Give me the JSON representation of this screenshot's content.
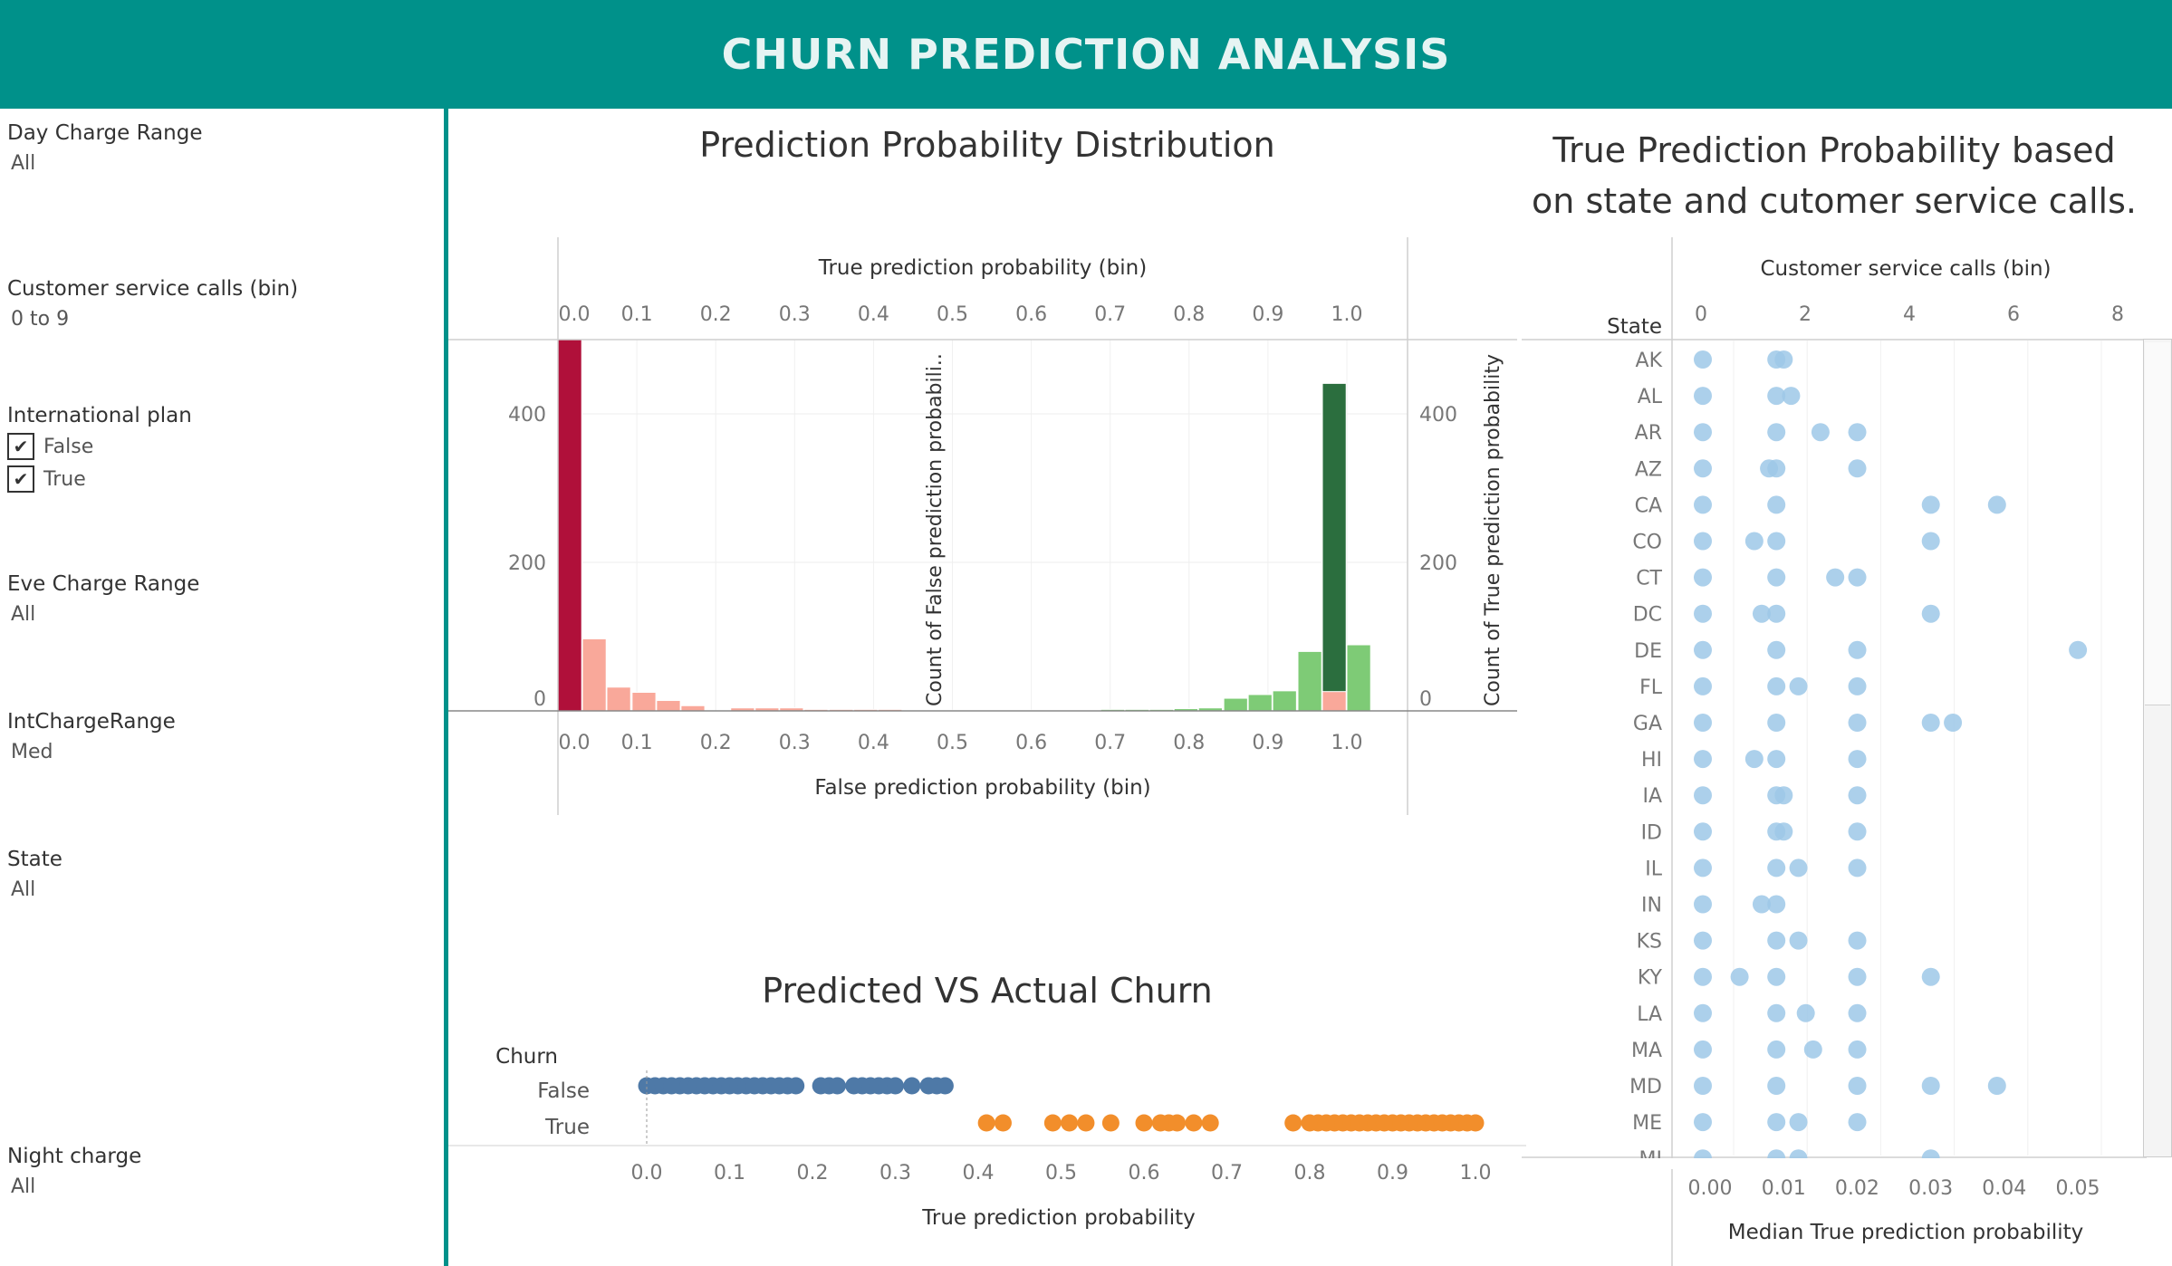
{
  "header": {
    "title": "CHURN PREDICTION ANALYSIS"
  },
  "filters": {
    "day_charge": {
      "label": "Day Charge Range",
      "value": "All"
    },
    "service_calls": {
      "label": "Customer service calls (bin)",
      "value": "0 to 9"
    },
    "intl_plan": {
      "label": "International plan",
      "options": [
        {
          "label": "False",
          "checked": true
        },
        {
          "label": "True",
          "checked": true
        }
      ]
    },
    "eve_charge": {
      "label": "Eve Charge Range",
      "value": "All"
    },
    "int_charge": {
      "label": "IntChargeRange",
      "value": "Med"
    },
    "state": {
      "label": "State",
      "value": "All"
    },
    "night_charge": {
      "label": "Night charge",
      "value": "All"
    }
  },
  "dist_chart": {
    "title": "Prediction Probability Distribution",
    "top_axis_label": "True prediction probability (bin)",
    "bottom_axis_label": "False prediction probability (bin)",
    "left_axis_label": "Count of False prediction probabili..",
    "right_axis_label": "Count of True prediction probability",
    "x_ticks": [
      "0.0",
      "0.1",
      "0.2",
      "0.3",
      "0.4",
      "0.5",
      "0.6",
      "0.7",
      "0.8",
      "0.9",
      "1.0"
    ],
    "y_ticks": [
      "0",
      "200",
      "400"
    ]
  },
  "churn_chart": {
    "title": "Predicted VS Actual Churn",
    "legend_title": "Churn",
    "rows": [
      "False",
      "True"
    ],
    "x_ticks": [
      "0.0",
      "0.1",
      "0.2",
      "0.3",
      "0.4",
      "0.5",
      "0.6",
      "0.7",
      "0.8",
      "0.9",
      "1.0"
    ],
    "x_label": "True prediction probability"
  },
  "state_chart": {
    "title_line1": "True Prediction Probability based",
    "title_line2": "on state and cutomer service calls.",
    "top_axis_label": "Customer service calls (bin)",
    "row_header": "State",
    "top_ticks": [
      "0",
      "2",
      "4",
      "6",
      "8"
    ],
    "bottom_ticks": [
      "0.00",
      "0.01",
      "0.02",
      "0.03",
      "0.04",
      "0.05"
    ],
    "bottom_label": "Median True prediction probability",
    "states": [
      "AK",
      "AL",
      "AR",
      "AZ",
      "CA",
      "CO",
      "CT",
      "DC",
      "DE",
      "FL",
      "GA",
      "HI",
      "IA",
      "ID",
      "IL",
      "IN",
      "KS",
      "KY",
      "LA",
      "MA",
      "MD",
      "ME",
      "MI"
    ]
  },
  "chart_data": [
    {
      "type": "bar",
      "x_bin_width": 0.03125,
      "ylim": [
        0,
        500
      ],
      "series": [
        {
          "name": "False prediction probability",
          "color_dark": "#b0103a",
          "color_light": "#f9a89a",
          "bins": [
            [
              0.0,
              500
            ],
            [
              0.031,
              97
            ],
            [
              0.062,
              32
            ],
            [
              0.094,
              25
            ],
            [
              0.125,
              14
            ],
            [
              0.156,
              7
            ],
            [
              0.219,
              4
            ],
            [
              0.25,
              4
            ],
            [
              0.281,
              4
            ],
            [
              0.312,
              2
            ],
            [
              0.344,
              2
            ],
            [
              0.375,
              2
            ],
            [
              0.406,
              2
            ],
            [
              0.5,
              1
            ],
            [
              0.531,
              1
            ],
            [
              0.562,
              1
            ],
            [
              0.594,
              1
            ],
            [
              0.625,
              1
            ],
            [
              0.656,
              1
            ],
            [
              0.688,
              1
            ],
            [
              0.719,
              1
            ],
            [
              0.75,
              1
            ],
            [
              0.781,
              1
            ],
            [
              0.812,
              3
            ],
            [
              0.844,
              4
            ],
            [
              0.875,
              5
            ],
            [
              0.906,
              7
            ],
            [
              0.938,
              10
            ],
            [
              0.969,
              26
            ]
          ]
        },
        {
          "name": "True prediction probability",
          "color_dark": "#2b6e3e",
          "color_light": "#7ecb76",
          "bins": [
            [
              0.688,
              2
            ],
            [
              0.719,
              2
            ],
            [
              0.75,
              2
            ],
            [
              0.781,
              3
            ],
            [
              0.812,
              4
            ],
            [
              0.844,
              17
            ],
            [
              0.875,
              22
            ],
            [
              0.906,
              27
            ],
            [
              0.938,
              80
            ],
            [
              0.969,
              441
            ],
            [
              1.0,
              89
            ]
          ]
        }
      ]
    },
    {
      "type": "scatter",
      "xlim": [
        0,
        1
      ],
      "series": [
        {
          "name": "False",
          "color": "#4e79a7",
          "x": [
            0.0,
            0.01,
            0.02,
            0.03,
            0.04,
            0.05,
            0.06,
            0.07,
            0.08,
            0.09,
            0.1,
            0.11,
            0.12,
            0.13,
            0.14,
            0.15,
            0.16,
            0.17,
            0.18,
            0.21,
            0.22,
            0.23,
            0.25,
            0.26,
            0.27,
            0.28,
            0.29,
            0.3,
            0.32,
            0.34,
            0.35,
            0.36
          ]
        },
        {
          "name": "True",
          "color": "#f28e2b",
          "x": [
            0.41,
            0.43,
            0.49,
            0.51,
            0.53,
            0.56,
            0.6,
            0.62,
            0.63,
            0.64,
            0.66,
            0.68,
            0.78,
            0.8,
            0.81,
            0.82,
            0.83,
            0.84,
            0.85,
            0.86,
            0.87,
            0.88,
            0.89,
            0.9,
            0.91,
            0.92,
            0.93,
            0.94,
            0.95,
            0.96,
            0.97,
            0.98,
            0.99,
            1.0
          ]
        }
      ]
    },
    {
      "type": "scatter",
      "x_label": "Median True prediction probability",
      "xlim": [
        0,
        0.055
      ],
      "color": "#9dc8e8",
      "points": {
        "AK": [
          0.0,
          0.01,
          0.011
        ],
        "AL": [
          0.0,
          0.01,
          0.012
        ],
        "AR": [
          0.0,
          0.01,
          0.016,
          0.021
        ],
        "AZ": [
          0.0,
          0.009,
          0.01,
          0.021
        ],
        "CA": [
          0.0,
          0.01,
          0.031,
          0.04
        ],
        "CO": [
          0.0,
          0.007,
          0.01,
          0.031
        ],
        "CT": [
          0.0,
          0.01,
          0.018,
          0.021
        ],
        "DC": [
          0.0,
          0.008,
          0.01,
          0.031
        ],
        "DE": [
          0.0,
          0.01,
          0.021,
          0.051
        ],
        "FL": [
          0.0,
          0.01,
          0.013,
          0.021
        ],
        "GA": [
          0.0,
          0.01,
          0.021,
          0.031,
          0.034
        ],
        "HI": [
          0.0,
          0.007,
          0.01,
          0.021
        ],
        "IA": [
          0.0,
          0.01,
          0.011,
          0.021
        ],
        "ID": [
          0.0,
          0.01,
          0.011,
          0.021
        ],
        "IL": [
          0.0,
          0.01,
          0.013,
          0.021
        ],
        "IN": [
          0.0,
          0.008,
          0.01
        ],
        "KS": [
          0.0,
          0.01,
          0.013,
          0.021
        ],
        "KY": [
          0.0,
          0.005,
          0.01,
          0.021,
          0.031
        ],
        "LA": [
          0.0,
          0.01,
          0.014,
          0.021
        ],
        "MA": [
          0.0,
          0.01,
          0.015,
          0.021
        ],
        "MD": [
          0.0,
          0.01,
          0.021,
          0.031,
          0.04
        ],
        "ME": [
          0.0,
          0.01,
          0.013,
          0.021
        ],
        "MI": [
          0.0,
          0.01,
          0.013,
          0.031
        ]
      }
    }
  ]
}
